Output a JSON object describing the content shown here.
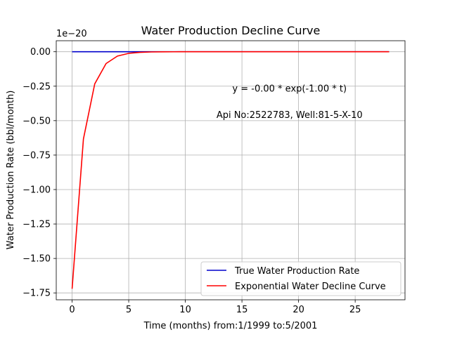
{
  "chart_data": {
    "type": "line",
    "title": "Water Production Decline Curve",
    "xlabel": "Time (months) from:1/1999 to:5/2001",
    "ylabel": "Water Production Rate (bbl/month)",
    "y_offset_label": "1e−20",
    "xlim": [
      -1.4,
      29.4
    ],
    "ylim": [
      -1.8,
      0.08
    ],
    "x_ticks": [
      0,
      5,
      10,
      15,
      20,
      25
    ],
    "x_tick_labels": [
      "0",
      "5",
      "10",
      "15",
      "20",
      "25"
    ],
    "y_ticks": [
      0.0,
      -0.25,
      -0.5,
      -0.75,
      -1.0,
      -1.25,
      -1.5,
      -1.75
    ],
    "y_tick_labels": [
      "0.00",
      "−0.25",
      "−0.50",
      "−0.75",
      "−1.00",
      "−1.25",
      "−1.50",
      "−1.75"
    ],
    "grid": true,
    "legend_position": "lower-right",
    "annotations": [
      {
        "text": "y = -0.00 * exp(-1.00 * t)",
        "x": 19.2,
        "y": -0.29
      },
      {
        "text": "Api No:2522783, Well:81-5-X-10",
        "x": 19.2,
        "y": -0.48
      }
    ],
    "series": [
      {
        "name": "True Water Production Rate",
        "color": "#0000cc",
        "x": [
          0,
          28
        ],
        "y": [
          0,
          0
        ]
      },
      {
        "name": "Exponential Water Decline Curve",
        "color": "#ff0000",
        "x": [
          0,
          1,
          2,
          3,
          4,
          5,
          6,
          7,
          8,
          9,
          10,
          11,
          12,
          13,
          14,
          15,
          16,
          17,
          18,
          19,
          20,
          21,
          22,
          23,
          24,
          25,
          26,
          27,
          28
        ],
        "y": [
          -1.72,
          -0.633,
          -0.233,
          -0.0856,
          -0.0315,
          -0.0116,
          -0.00426,
          -0.00157,
          -0.000577,
          -0.000212,
          -7.81e-05,
          0,
          0,
          0,
          0,
          0,
          0,
          0,
          0,
          0,
          0,
          0,
          0,
          0,
          0,
          0,
          0,
          0,
          0
        ]
      }
    ]
  }
}
